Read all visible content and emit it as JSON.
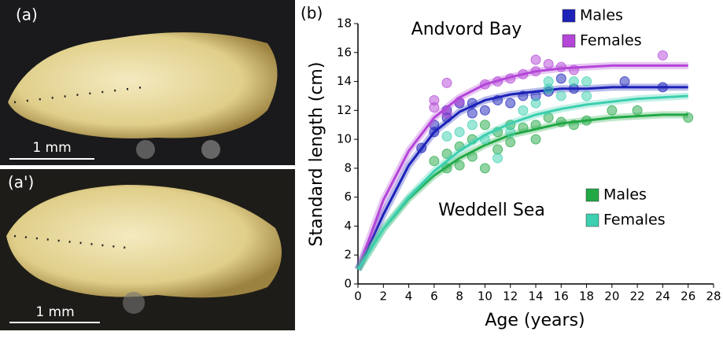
{
  "panels": [
    {
      "label": "(a)",
      "scale": "1 mm"
    },
    {
      "label": "(a')",
      "scale": "1 mm"
    }
  ],
  "chart_data": {
    "type": "scatter",
    "label": "(b)",
    "xlabel": "Age (years)",
    "ylabel": "Standard length (cm)",
    "xlim": [
      0,
      28
    ],
    "xticks": [
      0,
      2,
      4,
      6,
      8,
      10,
      12,
      14,
      16,
      18,
      20,
      22,
      24,
      26,
      28
    ],
    "ylim": [
      0,
      18
    ],
    "yticks": [
      0,
      2,
      4,
      6,
      8,
      10,
      12,
      14,
      16,
      18
    ],
    "groups": [
      {
        "name": "Andvord Bay",
        "series": [
          {
            "name": "Males",
            "color": "#1c22b8",
            "x": [
              5,
              6,
              6,
              7,
              7,
              8,
              9,
              9,
              10,
              11,
              12,
              13,
              14,
              15,
              16,
              17,
              21,
              24
            ],
            "values": [
              9.4,
              10.5,
              11,
              11.5,
              12,
              12.5,
              11.8,
              12.5,
              12,
              12.7,
              12.5,
              13,
              13,
              13.3,
              14.2,
              13.5,
              14,
              13.6
            ],
            "fit_x": [
              0,
              2,
              4,
              6,
              8,
              10,
              12,
              14,
              16,
              18,
              20,
              22,
              24,
              26
            ],
            "fit_values": [
              1,
              4.8,
              8.2,
              10.5,
              11.9,
              12.7,
              13.1,
              13.3,
              13.5,
              13.5,
              13.6,
              13.6,
              13.6,
              13.6
            ]
          },
          {
            "name": "Females",
            "color": "#b446d8",
            "x": [
              6,
              6,
              7,
              7,
              8,
              10,
              11,
              12,
              13,
              14,
              14,
              15,
              16,
              17,
              24
            ],
            "values": [
              12.2,
              12.7,
              13.9,
              11.8,
              12.6,
              13.8,
              14,
              14.2,
              14.5,
              15.5,
              14.7,
              15.2,
              15,
              14.8,
              15.8
            ],
            "fit_x": [
              0,
              2,
              4,
              6,
              8,
              10,
              12,
              14,
              16,
              18,
              20,
              22,
              24,
              26
            ],
            "fit_values": [
              1,
              5.8,
              9.2,
              11.5,
              12.9,
              13.8,
              14.3,
              14.7,
              14.9,
              15,
              15.1,
              15.1,
              15.1,
              15.1
            ]
          }
        ]
      },
      {
        "name": "Weddell Sea",
        "series": [
          {
            "name": "Males",
            "color": "#22a845",
            "x": [
              6,
              7,
              7,
              8,
              8,
              9,
              9,
              10,
              10,
              11,
              11,
              12,
              12,
              13,
              14,
              14,
              15,
              16,
              17,
              18,
              20,
              22,
              26
            ],
            "values": [
              8.5,
              8,
              9,
              8.2,
              9.5,
              10,
              8.8,
              8,
              11,
              10.5,
              9.3,
              9.8,
              11,
              10.8,
              11,
              10,
              11.5,
              11.2,
              11,
              11.3,
              12,
              12,
              11.5
            ],
            "fit_x": [
              0,
              2,
              4,
              6,
              8,
              10,
              12,
              14,
              16,
              18,
              20,
              22,
              24,
              26
            ],
            "fit_values": [
              1,
              3.8,
              5.9,
              7.5,
              8.7,
              9.6,
              10.3,
              10.7,
              11.1,
              11.3,
              11.5,
              11.6,
              11.7,
              11.7
            ]
          },
          {
            "name": "Females",
            "color": "#3ccfb0",
            "x": [
              7,
              8,
              9,
              10,
              11,
              12,
              13,
              14,
              15,
              15,
              16,
              17,
              18,
              18
            ],
            "values": [
              10.2,
              10.5,
              11,
              10,
              8.7,
              10.5,
              12,
              12.5,
              13.5,
              14,
              13,
              14,
              13,
              14
            ],
            "fit_x": [
              0,
              2,
              4,
              6,
              8,
              10,
              12,
              14,
              16,
              18,
              20,
              22,
              24,
              26
            ],
            "fit_values": [
              1,
              3.8,
              6,
              7.8,
              9.2,
              10.3,
              11.1,
              11.7,
              12.1,
              12.4,
              12.6,
              12.8,
              12.9,
              13
            ]
          }
        ]
      }
    ]
  }
}
